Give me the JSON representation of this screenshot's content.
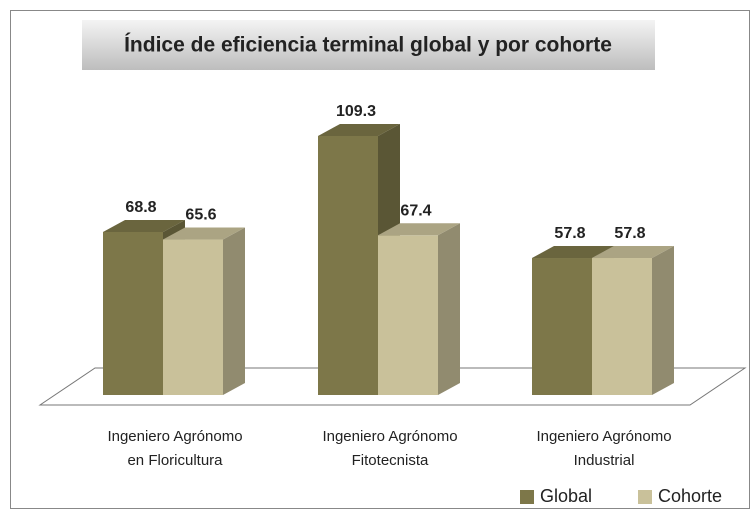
{
  "chart_data": {
    "type": "bar3d",
    "title": "Índice de eficiencia terminal global y por cohorte",
    "categories": [
      [
        "Ingeniero Agrónomo",
        "en Floricultura"
      ],
      [
        "Ingeniero Agrónomo",
        "Fitotecnista"
      ],
      [
        "Ingeniero Agrónomo",
        "Industrial"
      ]
    ],
    "series": [
      {
        "name": "Global",
        "color": "#7d7749",
        "values": [
          68.8,
          109.3,
          57.8
        ]
      },
      {
        "name": "Cohorte",
        "color": "#c9c19a",
        "values": [
          65.6,
          67.4,
          57.8
        ]
      }
    ],
    "legend": "bottom-right"
  }
}
